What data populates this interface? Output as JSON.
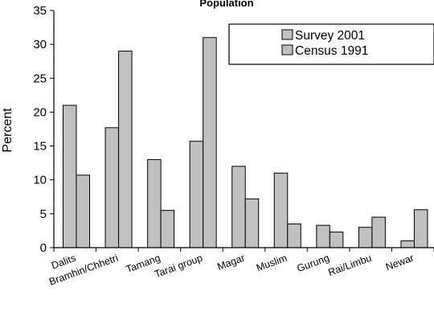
{
  "chart_data": {
    "type": "bar",
    "title": "Population",
    "ylabel": "Percent",
    "xlabel": "",
    "ylim": [
      0,
      35
    ],
    "yticks": [
      0,
      5,
      10,
      15,
      20,
      25,
      30,
      35
    ],
    "grid": false,
    "legend_position": "top-right",
    "bar_color": "#c0c0c0",
    "categories": [
      "Dalits",
      "Bramhin/Chhetri",
      "Tamang",
      "Tarai group",
      "Magar",
      "Muslim",
      "Gurung",
      "Rai/Limbu",
      "Newar"
    ],
    "series": [
      {
        "name": "Survey 2001",
        "values": [
          21.0,
          17.7,
          13.0,
          15.7,
          12.0,
          11.0,
          3.3,
          3.0,
          1.0
        ]
      },
      {
        "name": "Census 1991",
        "values": [
          10.7,
          29.0,
          5.5,
          31.0,
          7.2,
          3.5,
          2.3,
          4.5,
          5.6
        ]
      }
    ]
  }
}
